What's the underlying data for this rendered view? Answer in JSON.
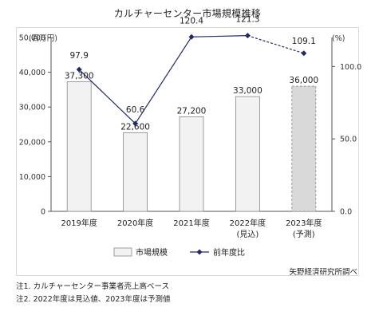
{
  "chart_data": {
    "type": "bar",
    "title": "カルチャーセンター市場規模推移",
    "categories": [
      "2019年度",
      "2020年度",
      "2021年度",
      "2022年度",
      "2023年度"
    ],
    "category_sublabels": [
      "",
      "",
      "",
      "(見込)",
      "(予測)"
    ],
    "y_unit_left": "(百万円)",
    "y_unit_right": "(%)",
    "ylim": [
      0,
      50000
    ],
    "y_ticks": [
      0,
      10000,
      20000,
      30000,
      40000,
      50000
    ],
    "y_tick_labels": [
      "0",
      "10,000",
      "20,000",
      "30,000",
      "40,000",
      "50,000"
    ],
    "y2lim": [
      0,
      120
    ],
    "y2_ticks": [
      0,
      50,
      100
    ],
    "y2_tick_labels": [
      "0.0",
      "50.0",
      "100.0"
    ],
    "grid": false,
    "legend_position": "bottom",
    "series": [
      {
        "name": "市場規模",
        "kind": "bar",
        "axis": "left",
        "values": [
          37300,
          22600,
          27200,
          33000,
          36000
        ],
        "labels": [
          "37,300",
          "22,600",
          "27,200",
          "33,000",
          "36,000"
        ],
        "colors": [
          "#f2f2f2",
          "#f2f2f2",
          "#f2f2f2",
          "#f2f2f2",
          "#d9d9d9"
        ],
        "styles": [
          "solid",
          "solid",
          "solid",
          "solid",
          "dashed"
        ]
      },
      {
        "name": "前年度比",
        "kind": "line",
        "axis": "right",
        "values": [
          97.9,
          60.6,
          120.4,
          121.3,
          109.1
        ],
        "labels": [
          "97.9",
          "60.6",
          "120.4",
          "121.3",
          "109.1"
        ],
        "color": "#1f2a6b",
        "segment_styles": [
          "solid",
          "solid",
          "solid",
          "dashed"
        ]
      }
    ]
  },
  "source": "矢野経済研究所調べ",
  "notes": [
    "注1. カルチャーセンター事業者売上高ベース",
    "注2. 2022年度は見込値、2023年度は予測値"
  ]
}
